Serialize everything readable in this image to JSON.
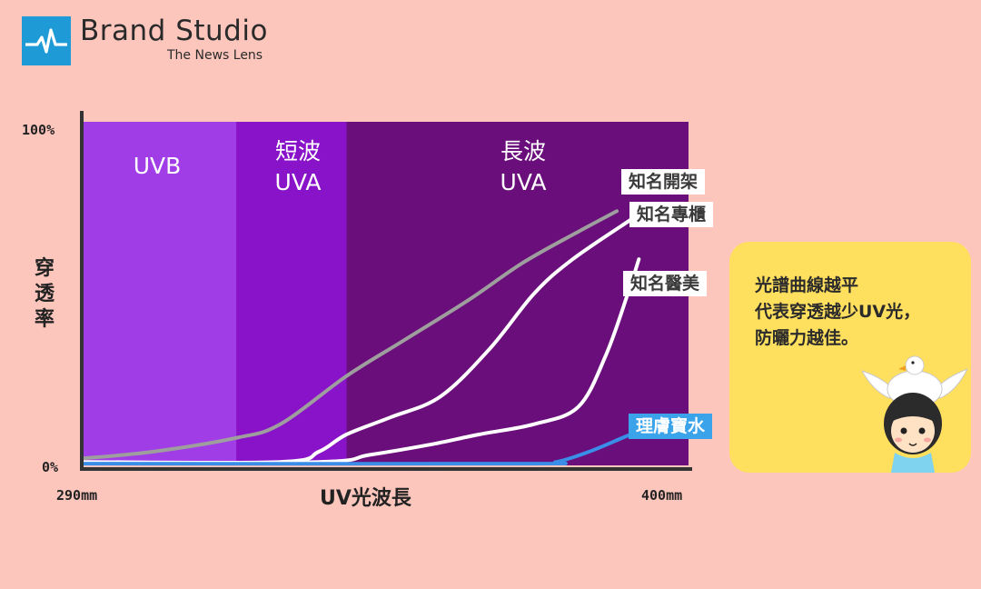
{
  "brand": {
    "title": "Brand Studio",
    "subtitle": "The News Lens"
  },
  "chart_data": {
    "type": "line",
    "x_range": [
      290,
      400
    ],
    "x_unit": "mm",
    "y_range": [
      0,
      100
    ],
    "xlabel": "UV光波長",
    "ylabel": "穿透率",
    "x_ticks": [
      "290mm",
      "400mm"
    ],
    "y_ticks": [
      "100%",
      "0%"
    ],
    "bands": [
      {
        "name": "UVB",
        "lines": [
          "UVB"
        ],
        "x0": 290,
        "x1": 318,
        "color": "#a03de6"
      },
      {
        "name": "短波UVA",
        "lines": [
          "短波",
          "UVA"
        ],
        "x0": 318,
        "x1": 338,
        "color": "#8913c8"
      },
      {
        "name": "長波UVA",
        "lines": [
          "長波",
          "UVA"
        ],
        "x0": 338,
        "x1": 400,
        "color": "#6a0e7c"
      }
    ],
    "series": [
      {
        "name": "知名開架",
        "color": "#9e9e9e",
        "points": [
          [
            290,
            2
          ],
          [
            303,
            4
          ],
          [
            318,
            8
          ],
          [
            326,
            12
          ],
          [
            338,
            26
          ],
          [
            348,
            36
          ],
          [
            360,
            48
          ],
          [
            370,
            59
          ],
          [
            380,
            68
          ],
          [
            387,
            74
          ]
        ]
      },
      {
        "name": "知名專櫃",
        "color": "#ffffff",
        "points": [
          [
            290,
            1
          ],
          [
            326,
            1
          ],
          [
            333,
            4
          ],
          [
            338,
            9
          ],
          [
            346,
            14
          ],
          [
            355,
            20
          ],
          [
            364,
            34
          ],
          [
            372,
            50
          ],
          [
            379,
            60
          ],
          [
            390,
            72
          ]
        ]
      },
      {
        "name": "知名醫美",
        "color": "#ffffff",
        "points": [
          [
            290,
            0.5
          ],
          [
            333,
            1
          ],
          [
            342,
            3
          ],
          [
            353,
            6
          ],
          [
            362,
            9
          ],
          [
            372,
            12
          ],
          [
            380,
            17
          ],
          [
            385,
            32
          ],
          [
            389,
            50
          ],
          [
            391,
            60
          ]
        ]
      },
      {
        "name": "理膚寶水",
        "color": "#3a8ee8",
        "points": [
          [
            290,
            0.5
          ],
          [
            370,
            0.5
          ],
          [
            376,
            1
          ],
          [
            382,
            4
          ],
          [
            388,
            8
          ],
          [
            391,
            10
          ]
        ]
      }
    ]
  },
  "note": {
    "lines": [
      "光譜曲線越平",
      "代表穿透越少UV光，",
      "防曬力越佳。"
    ]
  }
}
